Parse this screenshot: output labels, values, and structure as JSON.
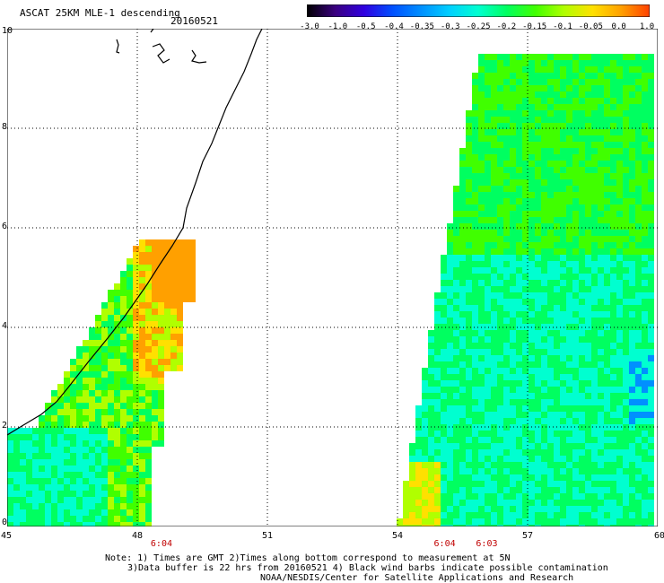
{
  "title": "ASCAT 25KM MLE-1 descending",
  "date": "20160521",
  "colorbar": {
    "labels": [
      "-3.0",
      "-1.0",
      "-0.5",
      "-0.4",
      "-0.35",
      "-0.3",
      "-0.25",
      "-0.2",
      "-0.15",
      "-0.1",
      "-0.05",
      "0.0",
      "1.0"
    ],
    "colors": [
      "#000000",
      "#3a0080",
      "#3000e0",
      "#0050ff",
      "#0090ff",
      "#00d0ff",
      "#00ffd0",
      "#00ff60",
      "#40ff00",
      "#b0ff00",
      "#ffe000",
      "#ffa000",
      "#ff4000"
    ]
  },
  "map": {
    "lon_ticks": [
      "45",
      "48",
      "51",
      "54",
      "57",
      "60"
    ],
    "lat_ticks": [
      "0",
      "2",
      "4",
      "6",
      "8",
      "10"
    ],
    "time_labels": [
      "6:04",
      "6:04",
      "6:03"
    ]
  },
  "notes": {
    "line1": "Note: 1) Times are GMT 2)Times along bottom correspond to measurement at 5N",
    "line2": "3)Data buffer is 22 hrs from 20160521 4) Black wind barbs indicate possible contamination",
    "line3": "NOAA/NESDIS/Center for Satellite Applications and Research"
  }
}
